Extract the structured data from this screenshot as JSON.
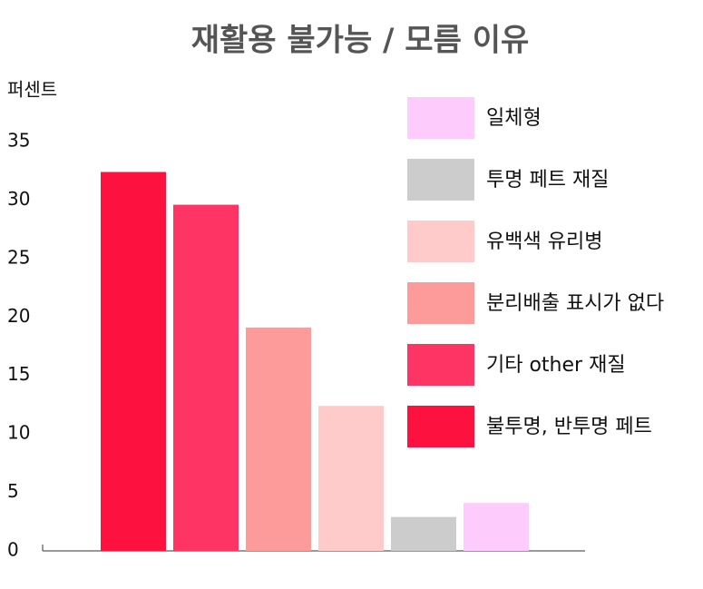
{
  "chart_data": {
    "type": "bar",
    "title": "재활용 불가능 / 모름 이유",
    "ylabel": "퍼센트",
    "series": [
      {
        "name": "불투명, 반투명 페트",
        "color": "#fd113f",
        "values": [
          32.4
        ]
      },
      {
        "name": "기타 other 재질",
        "color": "#fd3464",
        "values": [
          29.6
        ]
      },
      {
        "name": "분리배출 표시가 없다",
        "color": "#fd9a9a",
        "values": [
          19.1
        ]
      },
      {
        "name": "유백색 유리병",
        "color": "#fecaca",
        "values": [
          12.4
        ]
      },
      {
        "name": "투명 페트 재질",
        "color": "#cccccc",
        "values": [
          2.9
        ]
      },
      {
        "name": "일체형",
        "color": "#fdccfd",
        "values": [
          4.1
        ]
      }
    ],
    "ylim": [
      0,
      35
    ],
    "yticks": [
      0,
      5,
      10,
      15,
      20,
      25,
      30,
      35
    ],
    "legend": "upper right",
    "grid": false
  }
}
